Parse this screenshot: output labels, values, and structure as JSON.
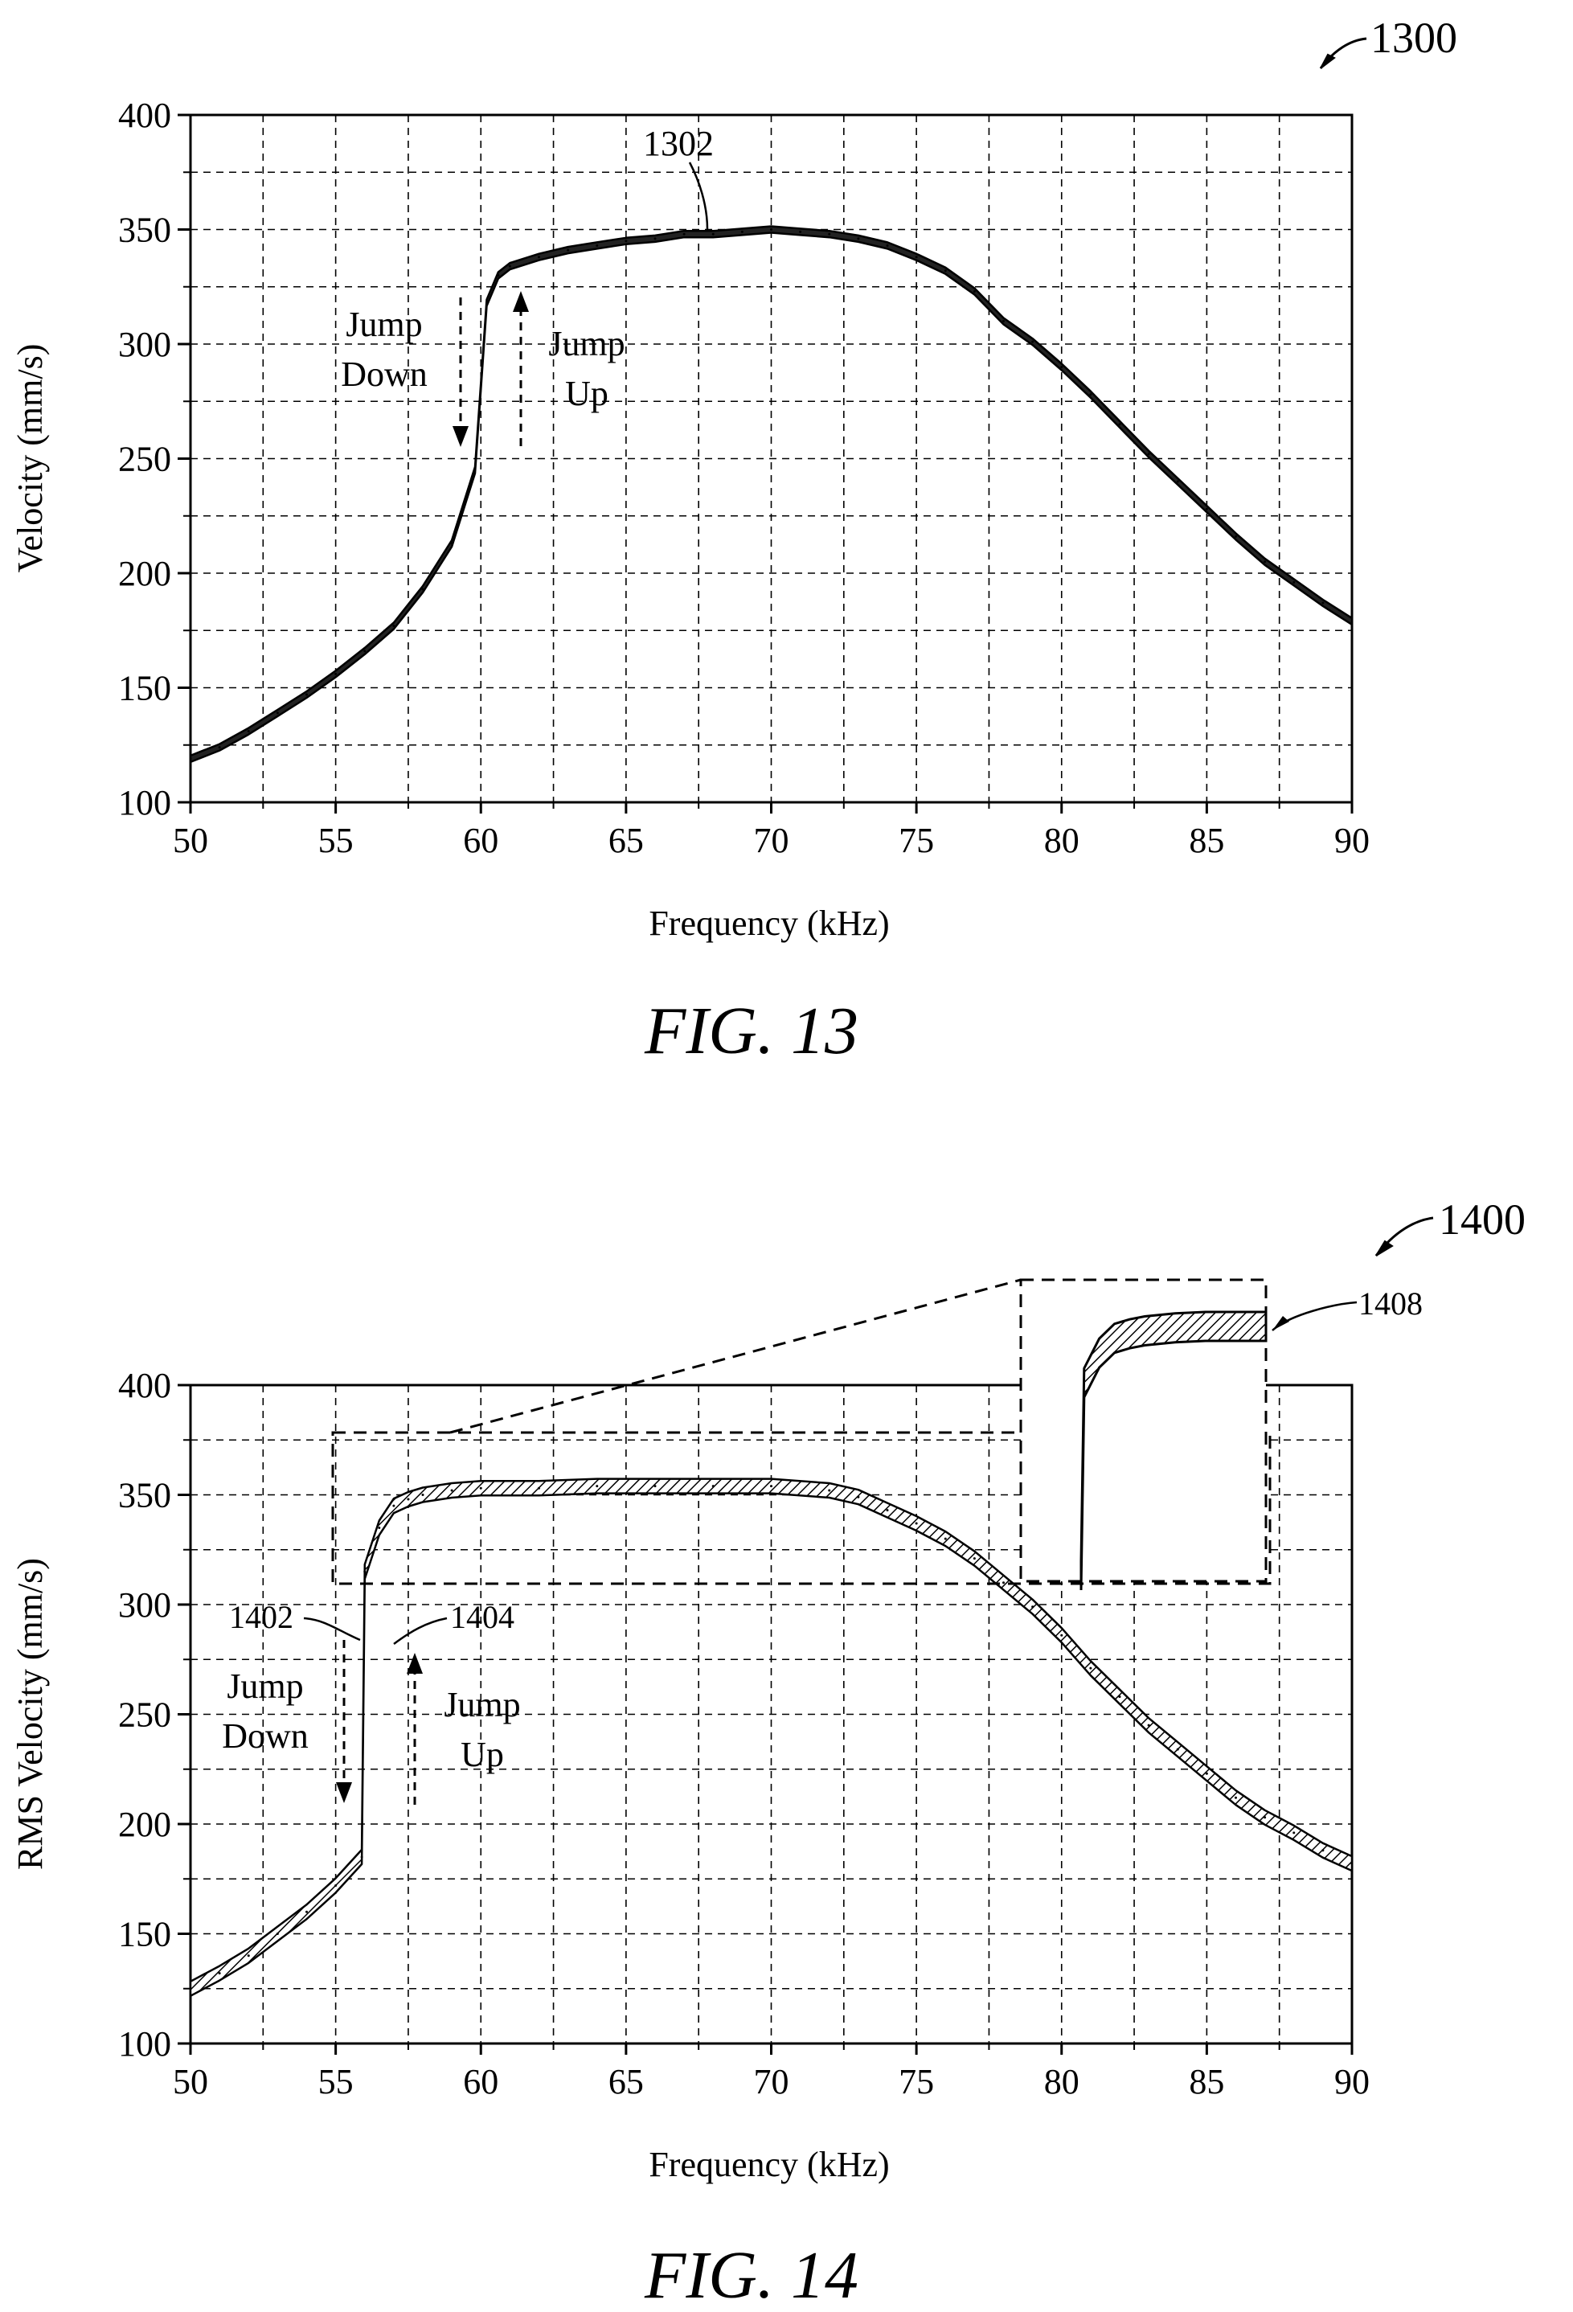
{
  "figures": [
    {
      "ref": "1300",
      "caption": "FIG. 13",
      "curve_ref": "1302",
      "annotations": {
        "jump_down": [
          "Jump",
          "Down"
        ],
        "jump_up": [
          "Jump",
          "Up"
        ]
      }
    },
    {
      "ref": "1400",
      "caption": "FIG. 14",
      "curve_refs": [
        "1402",
        "1404"
      ],
      "inset_ref": "1408",
      "annotations": {
        "jump_down": [
          "Jump",
          "Down"
        ],
        "jump_up": [
          "Jump",
          "Up"
        ]
      }
    }
  ],
  "chart_data": [
    {
      "type": "line",
      "xlabel": "Frequency (kHz)",
      "ylabel": "Velocity (mm/s)",
      "xlim": [
        50,
        90
      ],
      "ylim": [
        100,
        400
      ],
      "xticks": [
        50,
        55,
        60,
        65,
        70,
        75,
        80,
        85,
        90
      ],
      "yticks": [
        100,
        150,
        200,
        250,
        300,
        350,
        400
      ],
      "grid": true,
      "series": [
        {
          "x": [
            50,
            51,
            52,
            53,
            54,
            55,
            56,
            57,
            58,
            59,
            59.8,
            60.2,
            60.6,
            61,
            62,
            63,
            64,
            65,
            66,
            67,
            68,
            69,
            70,
            71,
            72,
            73,
            74,
            75,
            76,
            77,
            78,
            79,
            80,
            81,
            82,
            83,
            84,
            85,
            86,
            87,
            88,
            89,
            90
          ],
          "y": [
            119,
            124,
            131,
            139,
            147,
            156,
            166,
            177,
            193,
            213,
            245,
            318,
            330,
            334,
            338,
            341,
            343,
            345,
            346,
            348,
            348,
            349,
            350,
            349,
            348,
            346,
            343,
            338,
            332,
            323,
            310,
            301,
            290,
            278,
            265,
            252,
            240,
            228,
            216,
            205,
            196,
            187,
            179
          ]
        }
      ]
    },
    {
      "type": "line",
      "xlabel": "Frequency (kHz)",
      "ylabel": "RMS Velocity (mm/s)",
      "xlim": [
        50,
        90
      ],
      "ylim": [
        100,
        400
      ],
      "xticks": [
        50,
        55,
        60,
        65,
        70,
        75,
        80,
        85,
        90
      ],
      "yticks": [
        100,
        150,
        200,
        250,
        300,
        350,
        400
      ],
      "grid": true,
      "series": [
        {
          "x": [
            50,
            51,
            52,
            53,
            54,
            55,
            55.9,
            56,
            56.5,
            57,
            57.5,
            58,
            59,
            60,
            62,
            64,
            66,
            68,
            70,
            72,
            73,
            74,
            75,
            76,
            77,
            78,
            79,
            80,
            81,
            82,
            83,
            84,
            85,
            86,
            87,
            88,
            89,
            90
          ],
          "y": [
            125,
            132,
            140,
            150,
            160,
            172,
            185,
            315,
            335,
            345,
            348,
            350,
            352,
            353,
            353,
            354,
            354,
            354,
            354,
            352,
            349,
            343,
            337,
            330,
            321,
            310,
            299,
            286,
            271,
            258,
            245,
            234,
            223,
            212,
            203,
            196,
            188,
            182
          ]
        }
      ]
    }
  ]
}
